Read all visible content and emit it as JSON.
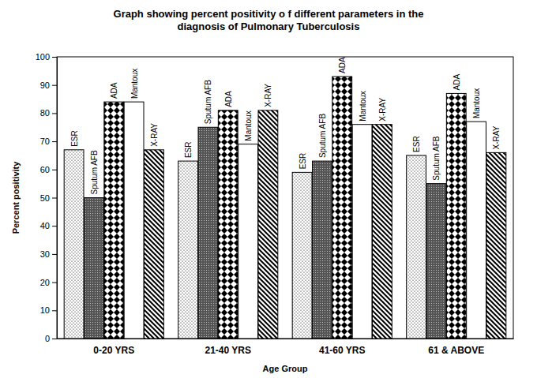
{
  "chart_data": {
    "type": "bar",
    "title": "Graph showing percent positivity o f different parameters in the diagnosis of Pulmonary Tuberculosis",
    "x_label": "Age Group",
    "y_label": "Percent positivity",
    "categories": [
      "0-20 YRS",
      "21-40 YRS",
      "41-60 YRS",
      "61 & ABOVE"
    ],
    "series": [
      {
        "name": "ESR",
        "color": "#ffffff",
        "values": [
          67,
          63,
          59,
          65
        ]
      },
      {
        "name": "Sputum AFB",
        "color": "#555555",
        "values": [
          50,
          75,
          63,
          55
        ]
      },
      {
        "name": "ADA",
        "color": "#000000",
        "values": [
          84,
          81,
          93,
          87
        ]
      },
      {
        "name": "Mantoux",
        "color": "#ffffff",
        "values": [
          84,
          69,
          76,
          77
        ]
      },
      {
        "name": "X-RAY",
        "color": "#ffffff",
        "values": [
          67,
          81,
          76,
          66
        ]
      }
    ],
    "ylim": [
      0,
      100
    ],
    "yticks": [
      0,
      10,
      20,
      30,
      40,
      50,
      60,
      70,
      80,
      90,
      100
    ],
    "grid": false,
    "data_labels": false
  }
}
